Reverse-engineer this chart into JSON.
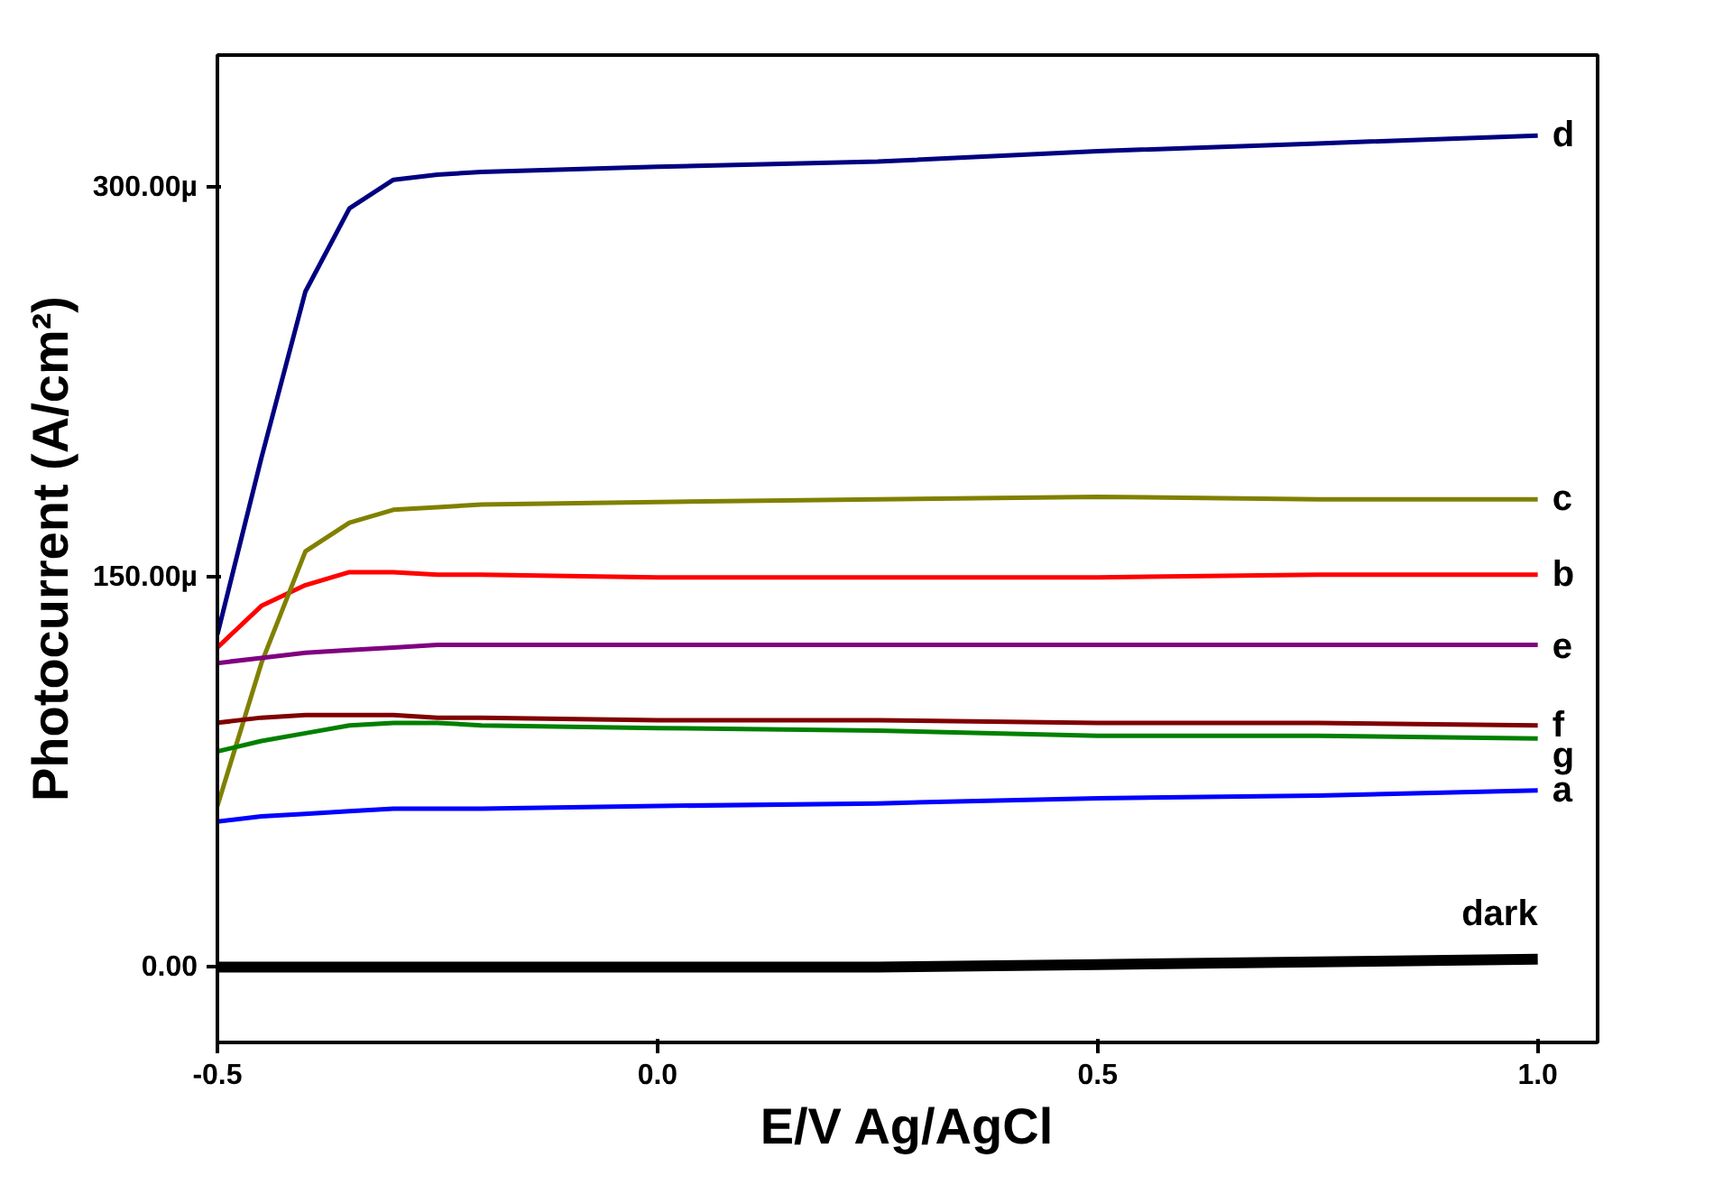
{
  "chart_data": {
    "type": "line",
    "xlabel": "E/V Ag/AgCl",
    "ylabel": "Photocurrent (A/cm²)",
    "x": [
      -0.5,
      -0.45,
      -0.4,
      -0.35,
      -0.3,
      -0.25,
      -0.2,
      0.0,
      0.25,
      0.5,
      0.75,
      1.0
    ],
    "xlim": [
      -0.5,
      1.068
    ],
    "ylim": [
      -29,
      351
    ],
    "xticks": [
      {
        "value": -0.5,
        "label": "-0.5"
      },
      {
        "value": 0,
        "label": "0.0"
      },
      {
        "value": 0.5,
        "label": "0.5"
      },
      {
        "value": 1.0,
        "label": "1.0"
      }
    ],
    "yticks": [
      {
        "value": 0,
        "label": "0.00"
      },
      {
        "value": 150,
        "label": "150.00µ"
      },
      {
        "value": 300,
        "label": "300.00µ"
      }
    ],
    "grid": false,
    "marker": "none",
    "line_style": "solid",
    "series": [
      {
        "name": "a",
        "color": "#0000ff",
        "values": [
          56,
          58,
          59,
          60,
          61,
          61,
          61,
          62,
          63,
          65,
          66,
          68
        ]
      },
      {
        "name": "b",
        "color": "#ff0000",
        "values": [
          123,
          139,
          147,
          152,
          152,
          151,
          151,
          150,
          150,
          150,
          151,
          151
        ]
      },
      {
        "name": "c",
        "color": "#808000",
        "values": [
          62,
          117,
          160,
          171,
          176,
          177,
          178,
          179,
          180,
          181,
          180,
          180
        ]
      },
      {
        "name": "d",
        "color": "#000080",
        "values": [
          128,
          196,
          260,
          292,
          303,
          305,
          306,
          308,
          310,
          314,
          317,
          320
        ]
      },
      {
        "name": "e",
        "color": "#800080",
        "values": [
          117,
          119,
          121,
          122,
          123,
          124,
          124,
          124,
          124,
          124,
          124,
          124
        ]
      },
      {
        "name": "f",
        "color": "#800000",
        "values": [
          94,
          96,
          97,
          97,
          97,
          96,
          96,
          95,
          95,
          94,
          94,
          93
        ]
      },
      {
        "name": "g",
        "color": "#008000",
        "values": [
          83,
          87,
          90,
          93,
          94,
          94,
          93,
          92,
          91,
          89,
          89,
          88
        ]
      },
      {
        "name": "dark",
        "color": "#000000",
        "values": [
          0,
          0,
          0,
          0,
          0,
          0,
          0,
          0,
          0,
          1,
          2,
          3
        ]
      }
    ]
  }
}
